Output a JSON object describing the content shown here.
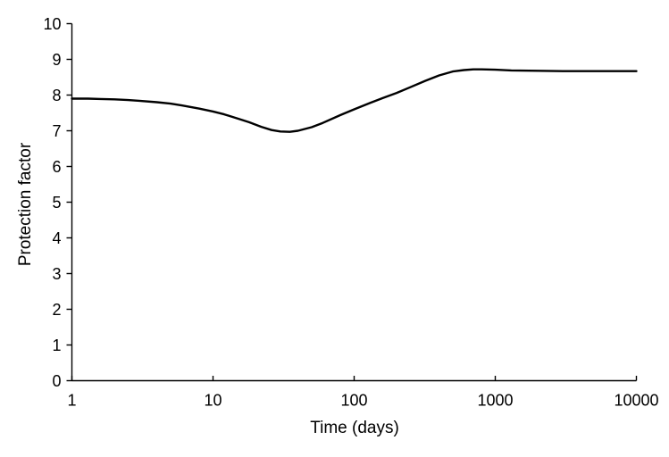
{
  "figure": {
    "background": "#ffffff",
    "axis_color": "#000000",
    "text_color": "#000000"
  },
  "chart_data": {
    "type": "line",
    "title": "",
    "xlabel": "Time (days)",
    "ylabel": "Protection factor",
    "x_scale": "log",
    "xlim": [
      1,
      10000
    ],
    "ylim": [
      0,
      10
    ],
    "x_ticks": [
      1,
      10,
      100,
      1000,
      10000
    ],
    "x_tick_labels": [
      "1",
      "10",
      "100",
      "1000",
      "10000"
    ],
    "y_ticks": [
      0,
      1,
      2,
      3,
      4,
      5,
      6,
      7,
      8,
      9,
      10
    ],
    "y_tick_labels": [
      "0",
      "1",
      "2",
      "3",
      "4",
      "5",
      "6",
      "7",
      "8",
      "9",
      "10"
    ],
    "grid": false,
    "legend": "none",
    "series": [
      {
        "name": "Protection factor",
        "color": "#000000",
        "x": [
          1,
          1.3,
          1.6,
          2,
          2.5,
          3,
          4,
          5,
          6,
          8,
          10,
          12,
          15,
          18,
          22,
          26,
          30,
          35,
          40,
          50,
          60,
          80,
          100,
          130,
          160,
          200,
          250,
          320,
          400,
          500,
          600,
          700,
          800,
          1000,
          1300,
          2000,
          3000,
          5000,
          10000
        ],
        "y": [
          7.9,
          7.9,
          7.89,
          7.88,
          7.86,
          7.84,
          7.8,
          7.76,
          7.71,
          7.62,
          7.54,
          7.46,
          7.34,
          7.24,
          7.11,
          7.02,
          6.98,
          6.97,
          7.0,
          7.1,
          7.22,
          7.44,
          7.6,
          7.78,
          7.92,
          8.06,
          8.22,
          8.4,
          8.55,
          8.66,
          8.7,
          8.72,
          8.72,
          8.71,
          8.69,
          8.68,
          8.67,
          8.67,
          8.67
        ]
      }
    ]
  }
}
